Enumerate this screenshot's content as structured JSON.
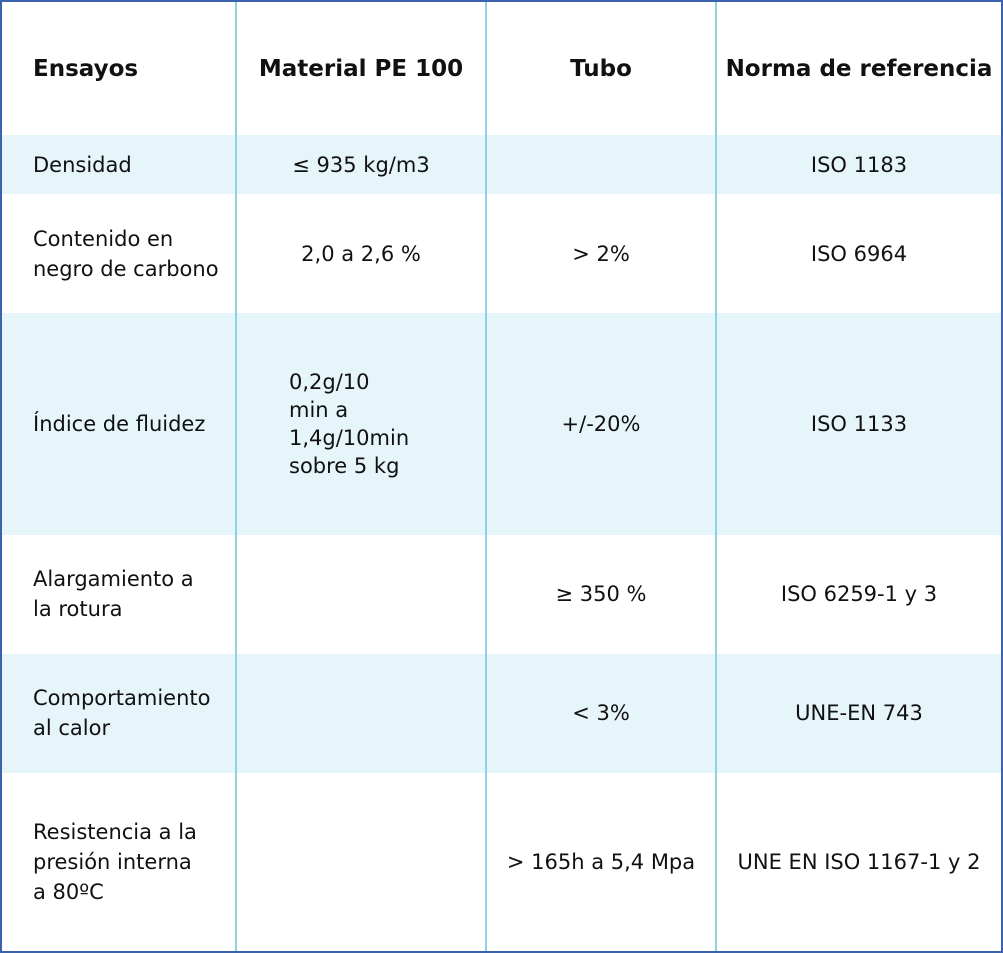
{
  "table": {
    "header": [
      "Ensayos",
      "Material PE 100",
      "Tubo",
      "Norma de referencia"
    ],
    "rows": [
      [
        "Densidad",
        "≤ 935 kg/m3",
        null,
        "ISO 1183"
      ],
      [
        "Contenido en\nnegro de carbono",
        "2,0 a 2,6 %",
        "> 2%",
        "ISO 6964"
      ],
      [
        "Índice de fluidez",
        "0,2g/10\nmin a\n1,4g/10min\nsobre 5 kg",
        "+/-20%",
        "ISO 1133"
      ],
      [
        "Alargamiento a\nla rotura",
        null,
        "≥ 350 %",
        "ISO 6259-1 y 3"
      ],
      [
        "Comportamiento\nal calor",
        null,
        "< 3%",
        "UNE-EN 743"
      ],
      [
        "Resistencia a la\npresión interna\na 80ºC",
        null,
        "> 165h a 5,4 Mpa",
        "UNE EN ISO 1167-1 y 2"
      ]
    ]
  }
}
